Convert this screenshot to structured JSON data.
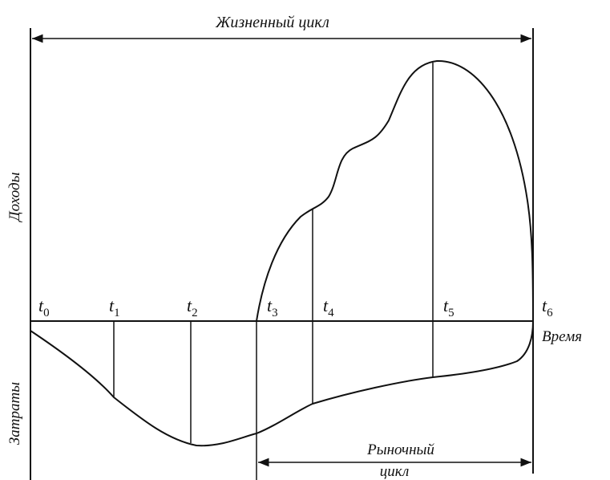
{
  "title": "Жизненный цикл",
  "axis": {
    "revenue": "Доходы",
    "costs": "Затраты",
    "time": "Время"
  },
  "market_cycle": [
    "Рыночный",
    "цикл"
  ],
  "time_points": [
    {
      "letter": "t",
      "index": "0"
    },
    {
      "letter": "t",
      "index": "1"
    },
    {
      "letter": "t",
      "index": "2"
    },
    {
      "letter": "t",
      "index": "3"
    },
    {
      "letter": "t",
      "index": "4"
    },
    {
      "letter": "t",
      "index": "5"
    },
    {
      "letter": "t",
      "index": "6"
    }
  ]
}
